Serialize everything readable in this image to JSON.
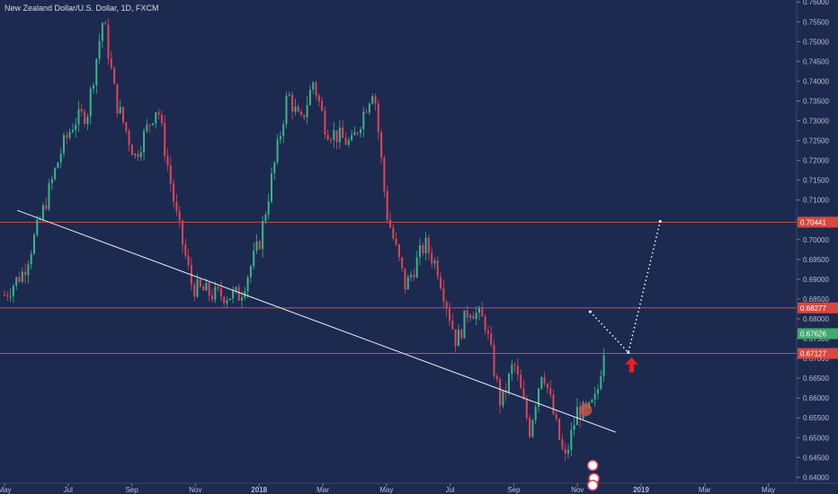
{
  "title": "New Zealand Dollar/U.S. Dollar, 1D, FXCM",
  "colors": {
    "background": "#1c2a4f",
    "up": "#3cb38a",
    "down": "#e0445a",
    "level_line": "#d9473f",
    "price_tag_green": "#43a96f",
    "arrow": "#ff1a1a"
  },
  "chart_data": {
    "type": "candlestick",
    "title": "New Zealand Dollar/U.S. Dollar, 1D, FXCM",
    "x_ticks": [
      "May",
      "Jul",
      "Sep",
      "Nov",
      "2018",
      "Mar",
      "May",
      "Jul",
      "Sep",
      "Nov",
      "2019",
      "Mar",
      "May"
    ],
    "y_ticks": [
      "0.76000",
      "0.75500",
      "0.75000",
      "0.74500",
      "0.74000",
      "0.73500",
      "0.73000",
      "0.72500",
      "0.72000",
      "0.71500",
      "0.71000",
      "0.70500",
      "0.70000",
      "0.69500",
      "0.69000",
      "0.68500",
      "0.68000",
      "0.67500",
      "0.67000",
      "0.66500",
      "0.66000",
      "0.65500",
      "0.65000",
      "0.64500",
      "0.64000"
    ],
    "ylim": [
      0.6385,
      0.7605
    ],
    "horizontal_levels": [
      {
        "label": "0.70441",
        "value": 0.70441
      },
      {
        "label": "0.68277",
        "value": 0.68277
      },
      {
        "label": "0.67127",
        "value": 0.67127
      }
    ],
    "current_price": {
      "label": "0.67626",
      "value": 0.67626
    },
    "trendline": {
      "from": [
        0.2,
        0.7074
      ],
      "to": [
        9.6,
        0.6514
      ]
    },
    "projection_path": [
      [
        9.2,
        0.6818
      ],
      [
        9.8,
        0.6715
      ],
      [
        10.3,
        0.7046
      ]
    ],
    "arrow_up_at": [
      9.85,
      0.6685
    ],
    "anchors": [
      {
        "x": 0.0,
        "y": 0.686
      },
      {
        "x": 0.3,
        "y": 0.692
      },
      {
        "x": 0.6,
        "y": 0.707
      },
      {
        "x": 0.9,
        "y": 0.723
      },
      {
        "x": 1.1,
        "y": 0.73
      },
      {
        "x": 1.3,
        "y": 0.732
      },
      {
        "x": 1.55,
        "y": 0.756
      },
      {
        "x": 1.75,
        "y": 0.735
      },
      {
        "x": 2.05,
        "y": 0.721
      },
      {
        "x": 2.4,
        "y": 0.734
      },
      {
        "x": 2.7,
        "y": 0.706
      },
      {
        "x": 2.95,
        "y": 0.688
      },
      {
        "x": 3.3,
        "y": 0.686
      },
      {
        "x": 3.7,
        "y": 0.686
      },
      {
        "x": 4.0,
        "y": 0.699
      },
      {
        "x": 4.3,
        "y": 0.724
      },
      {
        "x": 4.45,
        "y": 0.737
      },
      {
        "x": 4.65,
        "y": 0.729
      },
      {
        "x": 4.85,
        "y": 0.74
      },
      {
        "x": 5.05,
        "y": 0.728
      },
      {
        "x": 5.45,
        "y": 0.724
      },
      {
        "x": 5.8,
        "y": 0.739
      },
      {
        "x": 6.0,
        "y": 0.707
      },
      {
        "x": 6.3,
        "y": 0.688
      },
      {
        "x": 6.6,
        "y": 0.699
      },
      {
        "x": 6.8,
        "y": 0.693
      },
      {
        "x": 7.1,
        "y": 0.674
      },
      {
        "x": 7.3,
        "y": 0.683
      },
      {
        "x": 7.55,
        "y": 0.679
      },
      {
        "x": 7.8,
        "y": 0.658
      },
      {
        "x": 8.0,
        "y": 0.669
      },
      {
        "x": 8.25,
        "y": 0.652
      },
      {
        "x": 8.45,
        "y": 0.668
      },
      {
        "x": 8.65,
        "y": 0.654
      },
      {
        "x": 8.8,
        "y": 0.644
      },
      {
        "x": 9.0,
        "y": 0.657
      },
      {
        "x": 9.15,
        "y": 0.656
      },
      {
        "x": 9.3,
        "y": 0.66
      },
      {
        "x": 9.45,
        "y": 0.6765
      }
    ]
  }
}
